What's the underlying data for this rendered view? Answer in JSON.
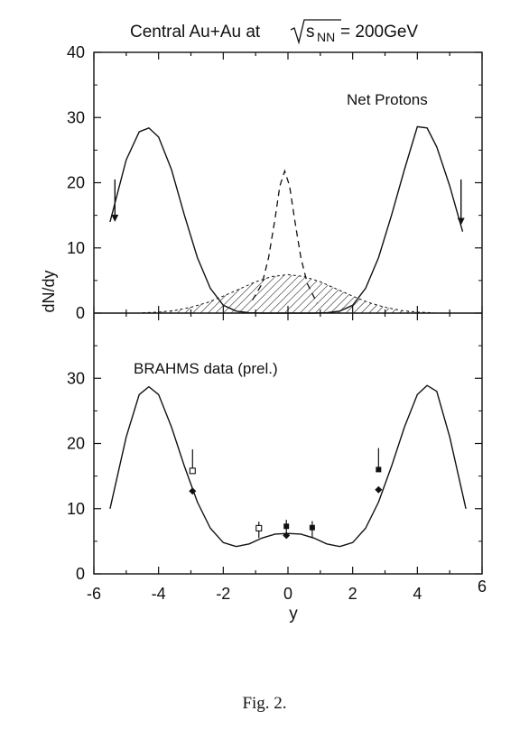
{
  "figure": {
    "title_prefix": "Central Au+Au at",
    "title_sqrt_s": "s",
    "title_sub": "NN",
    "title_suffix": "= 200GeV",
    "ylabel": "dN/dy",
    "xlabel": "y",
    "caption": "Fig. 2."
  },
  "chart_data": [
    {
      "type": "line",
      "panel": "top",
      "annotation": "Net Protons",
      "xlim": [
        -6,
        6
      ],
      "ylim": [
        0,
        40
      ],
      "yticks": [
        0,
        10,
        20,
        30,
        40
      ],
      "series": [
        {
          "style": "solid",
          "x": [
            -5.5,
            -5.0,
            -4.6,
            -4.3,
            -4.0,
            -3.6,
            -3.2,
            -2.8,
            -2.4,
            -2.0,
            -1.6,
            -1.2,
            -0.8,
            -0.4,
            0.0,
            0.4,
            0.8,
            1.2,
            1.6,
            2.0,
            2.4,
            2.8,
            3.2,
            3.6,
            4.0,
            4.3,
            4.6,
            5.0,
            5.4
          ],
          "y": [
            14.0,
            23.5,
            27.8,
            28.4,
            27.0,
            22.0,
            15.0,
            8.5,
            3.8,
            1.2,
            0.3,
            0.05,
            0.0,
            0.0,
            0.0,
            0.0,
            0.0,
            0.05,
            0.3,
            1.2,
            3.8,
            8.5,
            15.0,
            22.0,
            28.6,
            28.4,
            25.5,
            19.5,
            12.5
          ]
        },
        {
          "style": "dashed",
          "x": [
            -1.1,
            -0.8,
            -0.6,
            -0.4,
            -0.25,
            -0.1,
            0.05,
            0.2,
            0.4,
            0.6,
            0.9
          ],
          "y": [
            2.0,
            4.5,
            8.5,
            14.5,
            19.5,
            21.8,
            19.5,
            14.5,
            8.5,
            4.5,
            1.5
          ]
        },
        {
          "style": "hatched",
          "x": [
            -4.5,
            -4.0,
            -3.5,
            -3.0,
            -2.5,
            -2.0,
            -1.5,
            -1.0,
            -0.5,
            0.0,
            0.5,
            1.0,
            1.5,
            2.0,
            2.5,
            3.0,
            3.5,
            4.0,
            4.5
          ],
          "y": [
            0.05,
            0.15,
            0.4,
            0.9,
            1.6,
            2.6,
            3.7,
            4.8,
            5.6,
            5.9,
            5.6,
            4.8,
            3.7,
            2.6,
            1.6,
            0.9,
            0.4,
            0.15,
            0.05
          ]
        }
      ],
      "arrows": [
        {
          "x": -5.35,
          "y_from": 20.5,
          "y_to": 14.0
        },
        {
          "x": 5.35,
          "y_from": 20.5,
          "y_to": 13.5
        }
      ]
    },
    {
      "type": "line",
      "panel": "bottom",
      "annotation": "BRAHMS data (prel.)",
      "xlim": [
        -6,
        6
      ],
      "ylim": [
        0,
        40
      ],
      "xticks": [
        -6,
        -4,
        -2,
        0,
        2,
        4,
        6
      ],
      "yticks": [
        0,
        10,
        20,
        30
      ],
      "series": [
        {
          "style": "solid",
          "x": [
            -5.5,
            -5.0,
            -4.6,
            -4.3,
            -4.0,
            -3.6,
            -3.2,
            -2.8,
            -2.4,
            -2.0,
            -1.6,
            -1.2,
            -0.8,
            -0.4,
            0.0,
            0.4,
            0.8,
            1.2,
            1.6,
            2.0,
            2.4,
            2.8,
            3.2,
            3.6,
            4.0,
            4.3,
            4.6,
            5.0,
            5.5
          ],
          "y": [
            10.0,
            21.0,
            27.5,
            28.7,
            27.5,
            22.5,
            16.5,
            11.0,
            7.0,
            4.8,
            4.2,
            4.6,
            5.5,
            6.1,
            6.2,
            6.1,
            5.5,
            4.6,
            4.2,
            4.8,
            7.0,
            11.0,
            16.5,
            22.5,
            27.5,
            28.9,
            28.0,
            21.0,
            10.0
          ]
        }
      ],
      "points": [
        {
          "marker": "diamond-filled",
          "x": -2.95,
          "y": 12.7
        },
        {
          "marker": "square-open",
          "x": -2.95,
          "y": 15.8,
          "yerr_up": 3.3
        },
        {
          "marker": "square-open",
          "x": -0.9,
          "y": 7.0,
          "yerr_up": 1.0,
          "yerr_down": 1.5
        },
        {
          "marker": "diamond-filled",
          "x": -0.05,
          "y": 5.9
        },
        {
          "marker": "square-filled",
          "x": -0.05,
          "y": 7.3,
          "yerr_up": 1.0,
          "yerr_down": 1.3
        },
        {
          "marker": "square-filled",
          "x": 0.75,
          "y": 7.1,
          "yerr_up": 1.0,
          "yerr_down": 1.5
        },
        {
          "marker": "diamond-filled",
          "x": 2.8,
          "y": 12.9
        },
        {
          "marker": "square-filled",
          "x": 2.8,
          "y": 16.0,
          "yerr_up": 3.3
        }
      ]
    }
  ]
}
